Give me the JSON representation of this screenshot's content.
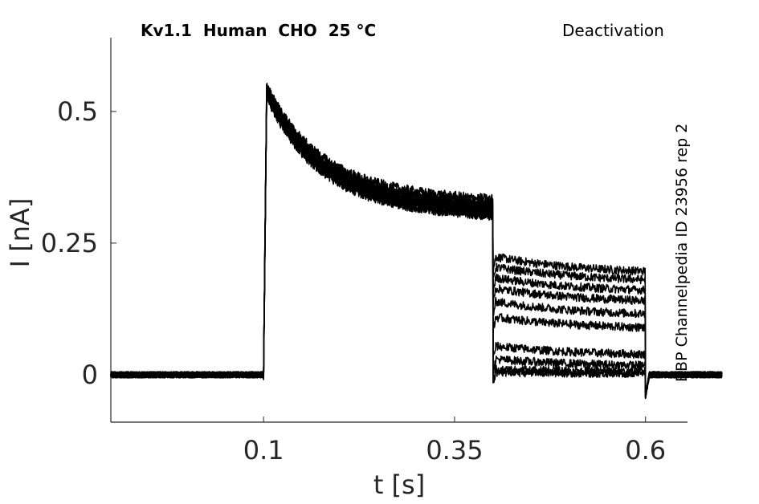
{
  "chart_data": {
    "type": "line",
    "title_left": "Kv1.1  Human  CHO  25 °C",
    "title_right": "Deactivation",
    "side_label": "BBP Channelpedia ID 23956 rep 2",
    "xlabel": "t [s]",
    "ylabel": "I [nA]",
    "xlim": [
      -0.1,
      0.655
    ],
    "ylim": [
      -0.09,
      0.64
    ],
    "xticks": [
      0.1,
      0.35,
      0.6
    ],
    "xtick_labels": [
      "0.1",
      "0.35",
      "0.6"
    ],
    "yticks": [
      0,
      0.25,
      0.5
    ],
    "ytick_labels": [
      "0",
      "0.25",
      "0.5"
    ],
    "grid": false,
    "line_color": "#000000",
    "protocol": {
      "activation_start": 0.1,
      "deactivation_start": 0.4,
      "deactivation_end": 0.6,
      "trace_start": -0.1,
      "trace_end": 0.6
    },
    "series": [
      {
        "peak": 0.555,
        "plateau_end": 0.32,
        "tail": 0.225,
        "tail_end": 0.19
      },
      {
        "peak": 0.545,
        "plateau_end": 0.315,
        "tail": 0.205,
        "tail_end": 0.175
      },
      {
        "peak": 0.56,
        "plateau_end": 0.33,
        "tail": 0.185,
        "tail_end": 0.155
      },
      {
        "peak": 0.54,
        "plateau_end": 0.3,
        "tail": 0.165,
        "tail_end": 0.135
      },
      {
        "peak": 0.55,
        "plateau_end": 0.31,
        "tail": 0.14,
        "tail_end": 0.11
      },
      {
        "peak": 0.545,
        "plateau_end": 0.305,
        "tail": 0.11,
        "tail_end": 0.085
      },
      {
        "peak": 0.555,
        "plateau_end": 0.315,
        "tail": 0.055,
        "tail_end": 0.035
      },
      {
        "peak": 0.55,
        "plateau_end": 0.31,
        "tail": 0.03,
        "tail_end": 0.015
      },
      {
        "peak": 0.545,
        "plateau_end": 0.3,
        "tail": 0.01,
        "tail_end": 0.005
      },
      {
        "peak": 0.56,
        "plateau_end": 0.325,
        "tail": 0.005,
        "tail_end": 0.002
      }
    ]
  }
}
